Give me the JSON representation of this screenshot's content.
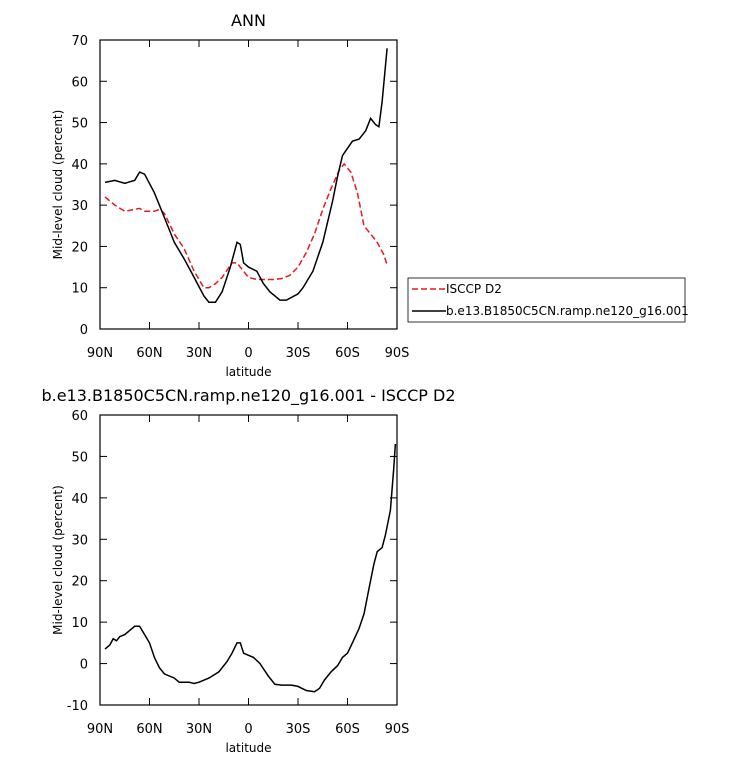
{
  "chart_data": [
    {
      "type": "line",
      "title": "ANN",
      "xlabel": "latitude",
      "ylabel": "Mid-level cloud (percent)",
      "xlim": [
        90,
        -90
      ],
      "ylim": [
        0,
        70
      ],
      "xticks": [
        {
          "value": 90,
          "label": "90N"
        },
        {
          "value": 60,
          "label": "60N"
        },
        {
          "value": 30,
          "label": "30N"
        },
        0,
        {
          "value": -30,
          "label": "30S"
        },
        {
          "value": -60,
          "label": "60S"
        },
        {
          "value": -90,
          "label": "90S"
        }
      ],
      "yticks": [
        0,
        10,
        20,
        30,
        40,
        50,
        60,
        70
      ],
      "legend": "right",
      "series": [
        {
          "name": "ISCCP D2",
          "color": "#e8191e",
          "dash": true,
          "x": [
            87,
            81,
            75,
            69,
            66,
            63,
            57,
            54,
            51,
            45,
            39,
            33,
            27,
            24,
            20,
            16,
            10,
            7,
            5,
            0,
            -5,
            -10,
            -15,
            -20,
            -25,
            -30,
            -35,
            -40,
            -45,
            -50,
            -55,
            -58,
            -62,
            -66,
            -70,
            -74,
            -78,
            -82,
            -84
          ],
          "values": [
            32,
            30,
            28.5,
            29,
            29.2,
            28.5,
            28.5,
            29,
            28,
            23,
            19.5,
            14,
            10,
            10,
            11,
            12.5,
            16,
            16,
            15,
            12.5,
            12,
            12,
            12,
            12.2,
            13,
            15,
            18.5,
            23,
            29,
            34,
            38.5,
            40,
            38,
            33,
            25,
            23,
            21,
            18,
            15.5
          ]
        },
        {
          "name": "b.e13.B1850C5CN.ramp.ne120_g16.001",
          "color": "#000000",
          "dash": false,
          "x": [
            87,
            81,
            75,
            69,
            66,
            63,
            57,
            51,
            45,
            39,
            33,
            27,
            24,
            20,
            16,
            11,
            7,
            5,
            3,
            0,
            -5,
            -9,
            -13,
            -19,
            -23,
            -30,
            -33,
            -39,
            -45,
            -51,
            -54,
            -57,
            -63,
            -67,
            -71,
            -74,
            -77,
            -79,
            -81,
            -84
          ],
          "values": [
            35.5,
            36,
            35.3,
            36,
            38,
            37.5,
            33,
            27,
            21,
            17,
            12.5,
            8,
            6.5,
            6.5,
            9,
            15,
            21,
            20.5,
            16,
            15,
            14,
            11,
            9,
            7,
            7,
            8.5,
            10,
            14,
            21,
            31,
            37,
            42,
            45.5,
            46,
            48,
            51,
            49.5,
            49,
            55,
            68
          ]
        }
      ]
    },
    {
      "type": "line",
      "title": "b.e13.B1850C5CN.ramp.ne120_g16.001 - ISCCP D2",
      "xlabel": "latitude",
      "ylabel": "Mid-level cloud (percent)",
      "xlim": [
        90,
        -90
      ],
      "ylim": [
        -10,
        60
      ],
      "xticks": [
        {
          "value": 90,
          "label": "90N"
        },
        {
          "value": 60,
          "label": "60N"
        },
        {
          "value": 30,
          "label": "30N"
        },
        0,
        {
          "value": -30,
          "label": "30S"
        },
        {
          "value": -60,
          "label": "60S"
        },
        {
          "value": -90,
          "label": "90S"
        }
      ],
      "yticks": [
        -10,
        0,
        10,
        20,
        30,
        40,
        50,
        60
      ],
      "series": [
        {
          "color": "#000000",
          "dash": false,
          "x": [
            87,
            84,
            82,
            80,
            78,
            75,
            72,
            69,
            66,
            63,
            60,
            57,
            54,
            51,
            45,
            42,
            36,
            33,
            30,
            24,
            18,
            13,
            10,
            7,
            5,
            3,
            0,
            -3,
            -7,
            -12,
            -16,
            -20,
            -26,
            -30,
            -35,
            -40,
            -43,
            -46,
            -50,
            -54,
            -57,
            -60,
            -63,
            -67,
            -70,
            -73,
            -76,
            -78,
            -81,
            -83,
            -86,
            -88,
            -89
          ],
          "values": [
            3.5,
            4.5,
            6,
            5.5,
            6.5,
            7,
            8,
            9,
            9,
            7,
            5,
            1.5,
            -1,
            -2.5,
            -3.5,
            -4.5,
            -4.5,
            -4.8,
            -4.5,
            -3.5,
            -2,
            0.5,
            2.5,
            5,
            5,
            2.5,
            2,
            1.5,
            0,
            -3,
            -5,
            -5.2,
            -5.2,
            -5.5,
            -6.5,
            -6.8,
            -6,
            -4,
            -2,
            -0.5,
            1.5,
            2.5,
            5,
            8.5,
            12,
            18,
            24,
            27,
            28,
            31,
            37,
            47,
            53
          ]
        }
      ]
    }
  ]
}
